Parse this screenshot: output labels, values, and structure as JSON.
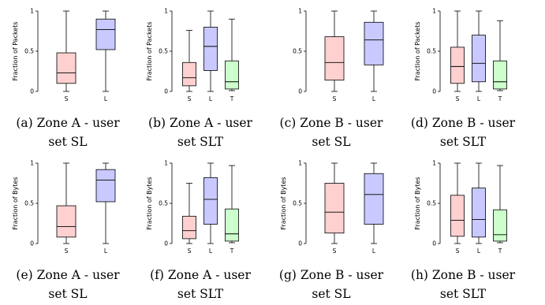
{
  "colors": {
    "S": "#ffd0d0",
    "L": "#c9c9ff",
    "T": "#ccffcc",
    "edge": "#000000"
  },
  "chart_data": [
    {
      "type": "box",
      "caption": "(a) Zone A - user set SL",
      "ylabel": "Fraction of Packets",
      "categories": [
        "S",
        "L"
      ],
      "yticks": [
        "0",
        "0.5",
        "1"
      ],
      "ylim": [
        0,
        1
      ],
      "boxes": [
        {
          "min": 0.0,
          "q1": 0.1,
          "median": 0.23,
          "q3": 0.48,
          "max": 1.0
        },
        {
          "min": 0.0,
          "q1": 0.52,
          "median": 0.77,
          "q3": 0.9,
          "max": 1.0
        }
      ]
    },
    {
      "type": "box",
      "caption": "(b) Zone A - user set SLT",
      "ylabel": "Fraction of Packets",
      "categories": [
        "S",
        "L",
        "T"
      ],
      "yticks": [
        "0",
        "0.5",
        "1"
      ],
      "ylim": [
        0,
        1
      ],
      "boxes": [
        {
          "min": 0.0,
          "q1": 0.07,
          "median": 0.17,
          "q3": 0.36,
          "max": 0.76
        },
        {
          "min": 0.0,
          "q1": 0.26,
          "median": 0.56,
          "q3": 0.8,
          "max": 1.0
        },
        {
          "min": 0.01,
          "q1": 0.03,
          "median": 0.12,
          "q3": 0.38,
          "max": 0.9
        }
      ]
    },
    {
      "type": "box",
      "caption": "(c) Zone B - user set SL",
      "ylabel": "",
      "categories": [
        "S",
        "L"
      ],
      "yticks": [
        "0",
        "0.5",
        "1"
      ],
      "ylim": [
        0,
        1
      ],
      "boxes": [
        {
          "min": 0.0,
          "q1": 0.14,
          "median": 0.36,
          "q3": 0.68,
          "max": 1.0
        },
        {
          "min": 0.0,
          "q1": 0.33,
          "median": 0.64,
          "q3": 0.86,
          "max": 1.0
        }
      ]
    },
    {
      "type": "box",
      "caption": "(d) Zone B - user set SLT",
      "ylabel": "Fraction of Packets",
      "categories": [
        "S",
        "L",
        "T"
      ],
      "yticks": [
        "0",
        "0.5",
        "1"
      ],
      "ylim": [
        0,
        1
      ],
      "boxes": [
        {
          "min": 0.0,
          "q1": 0.1,
          "median": 0.31,
          "q3": 0.55,
          "max": 1.0
        },
        {
          "min": 0.0,
          "q1": 0.12,
          "median": 0.35,
          "q3": 0.7,
          "max": 1.0
        },
        {
          "min": 0.01,
          "q1": 0.03,
          "median": 0.12,
          "q3": 0.38,
          "max": 0.88
        }
      ]
    },
    {
      "type": "box",
      "caption": "(e) Zone A - user set SL",
      "ylabel": "Fraction of Bytes",
      "categories": [
        "S",
        "L"
      ],
      "yticks": [
        "0",
        "0.5",
        "1"
      ],
      "ylim": [
        0,
        1
      ],
      "boxes": [
        {
          "min": 0.0,
          "q1": 0.08,
          "median": 0.21,
          "q3": 0.47,
          "max": 1.0
        },
        {
          "min": 0.0,
          "q1": 0.52,
          "median": 0.79,
          "q3": 0.92,
          "max": 1.0
        }
      ]
    },
    {
      "type": "box",
      "caption": "(f) Zone A - user set SLT",
      "ylabel": "Fraction of Bytes",
      "categories": [
        "S",
        "L",
        "T"
      ],
      "yticks": [
        "0",
        "0.5",
        "1"
      ],
      "ylim": [
        0,
        1
      ],
      "boxes": [
        {
          "min": 0.0,
          "q1": 0.06,
          "median": 0.16,
          "q3": 0.34,
          "max": 0.75
        },
        {
          "min": 0.0,
          "q1": 0.24,
          "median": 0.55,
          "q3": 0.82,
          "max": 1.0
        },
        {
          "min": 0.01,
          "q1": 0.03,
          "median": 0.12,
          "q3": 0.43,
          "max": 0.97
        }
      ]
    },
    {
      "type": "box",
      "caption": "(g) Zone B - user set SL",
      "ylabel": "Fraction of Bytes",
      "categories": [
        "S",
        "L"
      ],
      "yticks": [
        "0",
        "0.5",
        "1"
      ],
      "ylim": [
        0,
        1
      ],
      "boxes": [
        {
          "min": 0.0,
          "q1": 0.13,
          "median": 0.39,
          "q3": 0.75,
          "max": 1.0
        },
        {
          "min": 0.0,
          "q1": 0.24,
          "median": 0.61,
          "q3": 0.87,
          "max": 1.0
        }
      ]
    },
    {
      "type": "box",
      "caption": "(h) Zone B - user set SLT",
      "ylabel": "Fraction of Bytes",
      "categories": [
        "S",
        "L",
        "T"
      ],
      "yticks": [
        "0",
        "0.5",
        "1"
      ],
      "ylim": [
        0,
        1
      ],
      "boxes": [
        {
          "min": 0.0,
          "q1": 0.09,
          "median": 0.29,
          "q3": 0.6,
          "max": 1.0
        },
        {
          "min": 0.0,
          "q1": 0.08,
          "median": 0.3,
          "q3": 0.69,
          "max": 1.0
        },
        {
          "min": 0.01,
          "q1": 0.03,
          "median": 0.11,
          "q3": 0.42,
          "max": 0.97
        }
      ]
    }
  ]
}
